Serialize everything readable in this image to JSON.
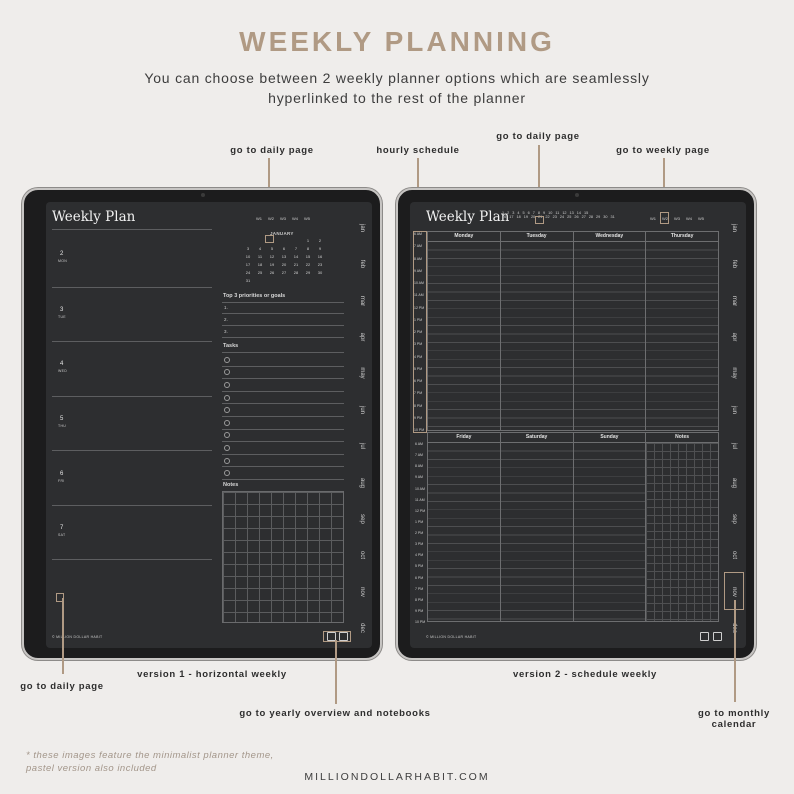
{
  "header": {
    "title": "WEEKLY PLANNING",
    "subtitle_line1": "You can choose between 2 weekly planner options which are seamlessly",
    "subtitle_line2": "hyperlinked to the rest of the planner"
  },
  "callouts": {
    "daily_page_top_left": "go to daily page",
    "hourly_schedule": "hourly schedule",
    "daily_page_top_right": "go to daily page",
    "weekly_page": "go to weekly page",
    "daily_page_bottom": "go to daily page",
    "version1": "version 1 - horizontal weekly",
    "version2": "version 2 - schedule weekly",
    "yearly_overview": "go to yearly overview and notebooks",
    "monthly_calendar_line1": "go to monthly",
    "monthly_calendar_line2": "calendar"
  },
  "v1": {
    "title": "Weekly Plan",
    "weeks": [
      "W1",
      "W2",
      "W3",
      "W4",
      "W5"
    ],
    "month": "JANUARY",
    "calendar_days": [
      "",
      "",
      "",
      "",
      "",
      "1",
      "2",
      "3",
      "4",
      "5",
      "6",
      "7",
      "8",
      "9",
      "10",
      "11",
      "12",
      "13",
      "14",
      "15",
      "16",
      "17",
      "18",
      "19",
      "20",
      "21",
      "22",
      "23",
      "24",
      "25",
      "26",
      "27",
      "28",
      "29",
      "30",
      "31"
    ],
    "priorities_heading": "Top 3 priorities or goals",
    "priorities": [
      "1.",
      "2.",
      "3."
    ],
    "tasks_heading": "Tasks",
    "task_count": 10,
    "notes_heading": "Notes",
    "days": [
      {
        "num": "2",
        "name": "MON"
      },
      {
        "num": "3",
        "name": "TUE"
      },
      {
        "num": "4",
        "name": "WED"
      },
      {
        "num": "5",
        "name": "THU"
      },
      {
        "num": "6",
        "name": "FRI"
      },
      {
        "num": "7",
        "name": "SAT"
      },
      {
        "num": "",
        "name": ""
      }
    ],
    "copyright": "© MILLION DOLLAR HABIT",
    "months": [
      "jan",
      "feb",
      "mar",
      "apr",
      "may",
      "jun",
      "jul",
      "aug",
      "sep",
      "oct",
      "nov",
      "dec"
    ]
  },
  "v2": {
    "title": "Weekly Plan",
    "dates": [
      "1",
      "2",
      "3",
      "4",
      "5",
      "6",
      "7",
      "8",
      "9",
      "10",
      "11",
      "12",
      "13",
      "14",
      "15",
      "16",
      "17",
      "18",
      "19",
      "20",
      "21",
      "22",
      "23",
      "24",
      "25",
      "26",
      "27",
      "28",
      "29",
      "30",
      "31"
    ],
    "weeks": [
      "W1",
      "W2",
      "W3",
      "W4",
      "W5"
    ],
    "days_top": [
      "Monday",
      "Tuesday",
      "Wednesday",
      "Thursday"
    ],
    "days_bottom": [
      "Friday",
      "Saturday",
      "Sunday",
      "Notes"
    ],
    "times": [
      "6 AM",
      "7 AM",
      "8 AM",
      "9 AM",
      "10 AM",
      "11 AM",
      "12 PM",
      "1 PM",
      "2 PM",
      "3 PM",
      "4 PM",
      "5 PM",
      "6 PM",
      "7 PM",
      "8 PM",
      "9 PM",
      "10 PM"
    ],
    "copyright": "© MILLION DOLLAR HABIT",
    "months": [
      "jan",
      "feb",
      "mar",
      "apr",
      "may",
      "jun",
      "jul",
      "aug",
      "sep",
      "oct",
      "nov",
      "dec"
    ]
  },
  "footer": {
    "note_line1": "* these images feature the minimalist planner theme,",
    "note_line2": "pastel version also included",
    "website": "MILLIONDOLLARHABIT.COM"
  },
  "colors": {
    "accent": "#b09a84",
    "background": "#efedeb",
    "screen": "#2d2e30"
  }
}
